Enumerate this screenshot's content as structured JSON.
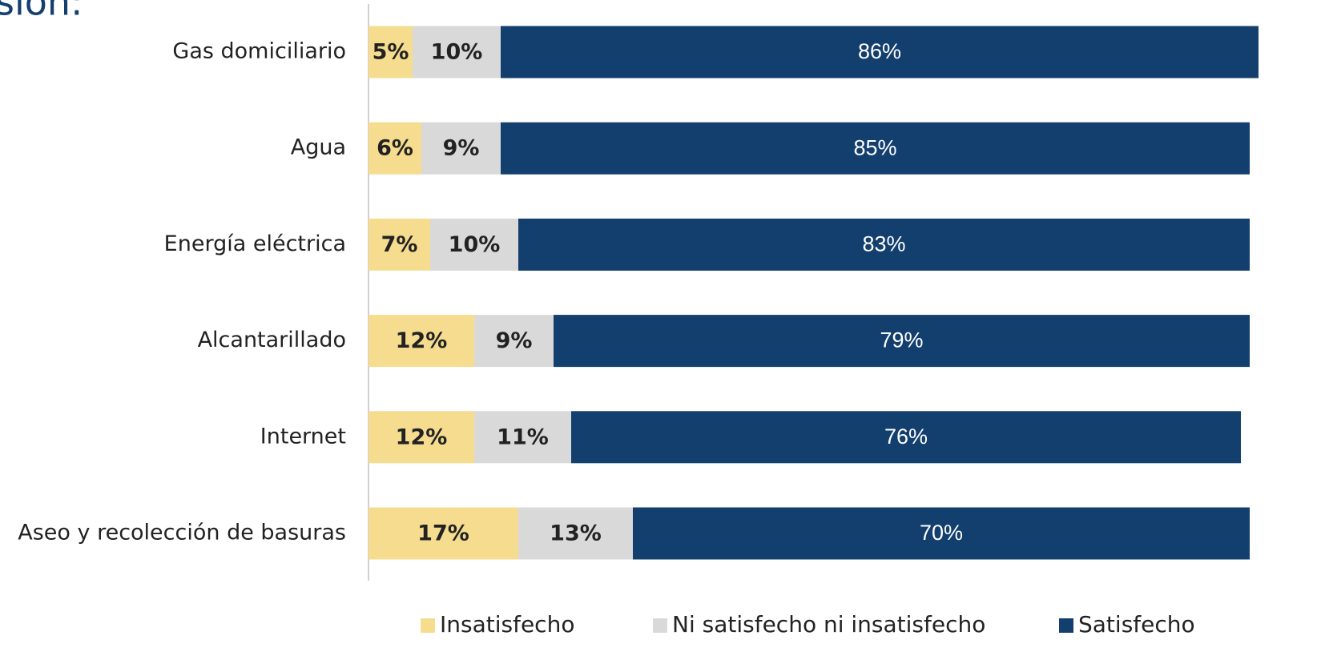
{
  "chart_data": {
    "type": "stacked-bar-horizontal",
    "title": "sión:",
    "categories": [
      "Gas domiciliario",
      "Agua",
      "Energía eléctrica",
      "Alcantarillado",
      "Internet",
      "Aseo y recolección de basuras"
    ],
    "series": [
      {
        "name": "Insatisfecho",
        "color": "#f5dc8f",
        "values": [
          5,
          6,
          7,
          12,
          12,
          17
        ],
        "value_labels": [
          "5%",
          "6%",
          "7%",
          "12%",
          "12%",
          "17%"
        ]
      },
      {
        "name": "Ni satisfecho ni insatisfecho",
        "color": "#d9d9d9",
        "values": [
          10,
          9,
          10,
          9,
          11,
          13
        ],
        "value_labels": [
          "10%",
          "9%",
          "10%",
          "9%",
          "11%",
          "13%"
        ]
      },
      {
        "name": "Satisfecho",
        "color": "#123f6e",
        "values": [
          86,
          85,
          83,
          79,
          76,
          70
        ],
        "value_labels": [
          "86%",
          "85%",
          "83%",
          "79%",
          "76%",
          "70%"
        ]
      }
    ],
    "xlim": [
      0,
      100
    ]
  }
}
